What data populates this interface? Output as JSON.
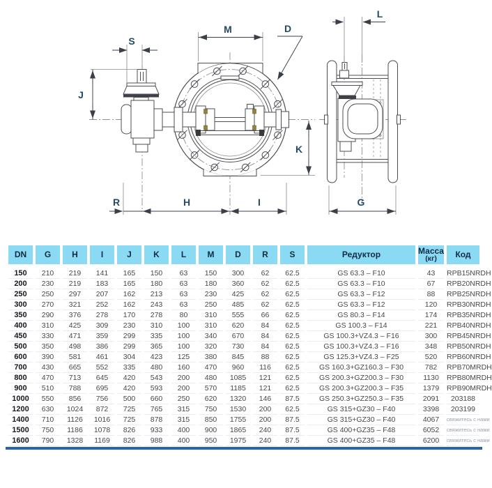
{
  "diagram": {
    "labels": {
      "S": "S",
      "M": "M",
      "D": "D",
      "L": "L",
      "J": "J",
      "K": "K",
      "R": "R",
      "H": "H",
      "I": "I",
      "G": "G"
    }
  },
  "table": {
    "headers": [
      {
        "label": "DN"
      },
      {
        "label": "G"
      },
      {
        "label": "H"
      },
      {
        "label": "I"
      },
      {
        "label": "J"
      },
      {
        "label": "K"
      },
      {
        "label": "L"
      },
      {
        "label": "M"
      },
      {
        "label": "D"
      },
      {
        "label": "R"
      },
      {
        "label": "S"
      },
      {
        "label": "Редуктор"
      },
      {
        "label": "Масса",
        "sub": "(кг)"
      },
      {
        "label": "Код"
      }
    ],
    "contact_note": "свяжитесь с нами",
    "rows": [
      [
        "150",
        "210",
        "219",
        "141",
        "165",
        "150",
        "63",
        "150",
        "300",
        "62",
        "62.5",
        "GS 63.3 – F10",
        "43",
        "RPB15NRDH"
      ],
      [
        "200",
        "230",
        "219",
        "183",
        "165",
        "180",
        "63",
        "180",
        "360",
        "62",
        "62.5",
        "GS 63.3 – F10",
        "67",
        "RPB20NRDH"
      ],
      [
        "250",
        "250",
        "297",
        "207",
        "162",
        "213",
        "63",
        "230",
        "425",
        "62",
        "62.5",
        "GS 63.3 – F12",
        "88",
        "RPB25NRDH"
      ],
      [
        "300",
        "270",
        "321",
        "252",
        "162",
        "243",
        "63",
        "250",
        "485",
        "62",
        "62.5",
        "GS 63.3 – F12",
        "120",
        "RPB30NRDH"
      ],
      [
        "350",
        "290",
        "376",
        "278",
        "170",
        "278",
        "80",
        "310",
        "555",
        "66",
        "62.5",
        "GS 80.3 – F14",
        "174",
        "RPB35NRDH"
      ],
      [
        "400",
        "310",
        "425",
        "309",
        "230",
        "310",
        "100",
        "310",
        "620",
        "84",
        "62.5",
        "GS 100.3 – F14",
        "221",
        "RPB40NRDH"
      ],
      [
        "450",
        "330",
        "471",
        "359",
        "299",
        "335",
        "100",
        "340",
        "670",
        "84",
        "62.5",
        "GS 100.3+VZ4.3 – F16",
        "300",
        "RPB45NRDH"
      ],
      [
        "500",
        "350",
        "498",
        "386",
        "299",
        "365",
        "100",
        "320",
        "730",
        "84",
        "62.5",
        "GS 100.3+VZ4.3 – F16",
        "348",
        "RPB50NRDH"
      ],
      [
        "600",
        "390",
        "581",
        "461",
        "304",
        "423",
        "125",
        "380",
        "845",
        "88",
        "62.5",
        "GS 125.3+VZ4.3 – F25",
        "520",
        "RPB60NRDH"
      ],
      [
        "700",
        "430",
        "665",
        "552",
        "335",
        "480",
        "160",
        "470",
        "960",
        "116",
        "62.5",
        "GS 160.3+GZ160.3 – F30",
        "782",
        "RPB70MRDH"
      ],
      [
        "800",
        "470",
        "713",
        "645",
        "420",
        "543",
        "200",
        "480",
        "1085",
        "121",
        "62.5",
        "GS 200.3+GZ200.3 – F30",
        "1130",
        "RPB80MRDH"
      ],
      [
        "900",
        "510",
        "788",
        "695",
        "420",
        "593",
        "200",
        "570",
        "1185",
        "121",
        "62.5",
        "GS 200.3+GZ200.3 – F35",
        "1379",
        "RPB90MRDH"
      ],
      [
        "1000",
        "550",
        "856",
        "756",
        "500",
        "660",
        "250",
        "620",
        "1320",
        "146",
        "87.5",
        "GS 250.3+GZ250.3 – F35",
        "2091",
        "203188"
      ],
      [
        "1200",
        "630",
        "1024",
        "872",
        "725",
        "765",
        "315",
        "750",
        "1530",
        "200",
        "62.5",
        "GS 315+GZ30 – F40",
        "3398",
        "203199"
      ],
      [
        "1400",
        "710",
        "1126",
        "1016",
        "725",
        "878",
        "315",
        "850",
        "1755",
        "200",
        "87.5",
        "GS 315+GZ30 – F40",
        "4067",
        "свяжитесь с нами"
      ],
      [
        "1500",
        "750",
        "1186",
        "1078",
        "826",
        "933",
        "400",
        "900",
        "1865",
        "240",
        "87.5",
        "GS 400+GZ35 – F48",
        "6052",
        "свяжитесь с нами"
      ],
      [
        "1600",
        "790",
        "1328",
        "1169",
        "826",
        "988",
        "400",
        "950",
        "1975",
        "240",
        "87.5",
        "GS 400+GZ35 – F48",
        "6200",
        "свяжитесь с нами"
      ]
    ],
    "colors": {
      "header_bg": "#8bdaf3",
      "header_text": "#0f2b45",
      "accent_line": "#2664ad",
      "dim_label": "#244a63",
      "contact_text": "#9aa1ab"
    }
  }
}
